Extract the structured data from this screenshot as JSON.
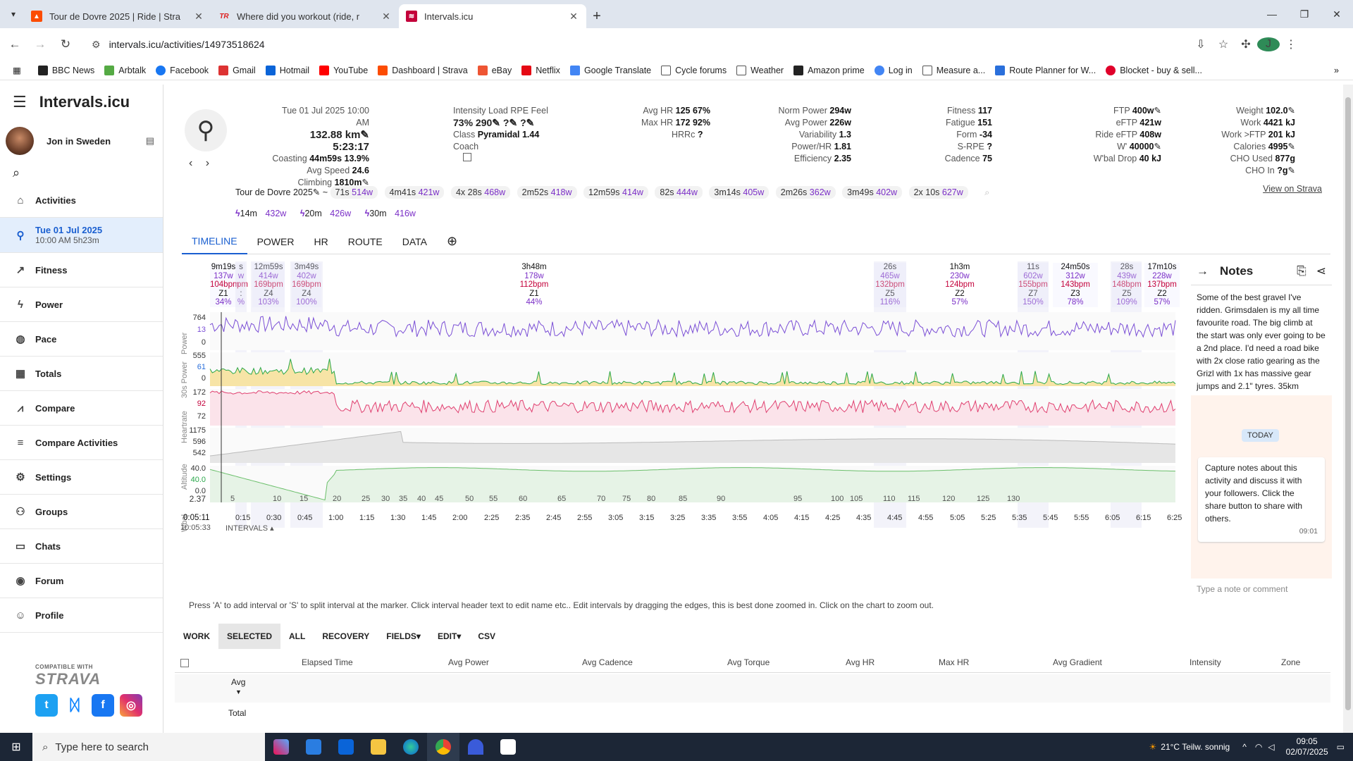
{
  "browser": {
    "tabs": [
      {
        "title": "Tour de Dovre 2025 | Ride | Stra",
        "icon": "strava-icon",
        "color": "#fc4c02"
      },
      {
        "title": "Where did you workout (ride, r",
        "icon": "trainerroad-icon",
        "color": "#d22"
      },
      {
        "title": "Intervals.icu",
        "icon": "intervals-icon",
        "color": "#c3003a"
      }
    ],
    "url": "intervals.icu/activities/14973518624",
    "profile_initial": "J"
  },
  "bookmarks": [
    {
      "label": "BBC News",
      "color": "#222"
    },
    {
      "label": "Arbtalk",
      "color": "#5a4"
    },
    {
      "label": "Facebook",
      "color": "#1877f2"
    },
    {
      "label": "Gmail",
      "color": "#d33"
    },
    {
      "label": "Hotmail",
      "color": "#0a64d8"
    },
    {
      "label": "YouTube",
      "color": "#f00"
    },
    {
      "label": "Dashboard | Strava",
      "color": "#fc4c02"
    },
    {
      "label": "eBay",
      "color": "#e53"
    },
    {
      "label": "Netflix",
      "color": "#e50914"
    },
    {
      "label": "Google Translate",
      "color": "#4285f4"
    },
    {
      "label": "Cycle forums",
      "color": "#888"
    },
    {
      "label": "Weather",
      "color": "#888"
    },
    {
      "label": "Amazon prime",
      "color": "#222"
    },
    {
      "label": "Log in",
      "color": "#4285f4"
    },
    {
      "label": "Measure a...",
      "color": "#888"
    },
    {
      "label": "Route Planner for W...",
      "color": "#2a6fdb"
    },
    {
      "label": "Blocket - buy & sell...",
      "color": "#e0002a"
    }
  ],
  "sidebar": {
    "brand": "Intervals.icu",
    "user": "Jon in Sweden",
    "items": [
      {
        "label": "Activities",
        "icon": "home-icon"
      },
      {
        "label": "Tue 01 Jul 2025",
        "sub": "10:00 AM   5h23m",
        "icon": "bike-icon",
        "selected": true
      },
      {
        "label": "Fitness",
        "icon": "trend-icon"
      },
      {
        "label": "Power",
        "icon": "bolt-icon"
      },
      {
        "label": "Pace",
        "icon": "shoe-icon"
      },
      {
        "label": "Totals",
        "icon": "calendar-icon"
      },
      {
        "label": "Compare",
        "icon": "chart-line-icon"
      },
      {
        "label": "Compare Activities",
        "icon": "compare-icon"
      },
      {
        "label": "Settings",
        "icon": "gear-icon"
      },
      {
        "label": "Groups",
        "icon": "group-icon"
      },
      {
        "label": "Chats",
        "icon": "chat-icon"
      },
      {
        "label": "Forum",
        "icon": "forum-icon"
      },
      {
        "label": "Profile",
        "icon": "profile-icon"
      }
    ],
    "compatible": "COMPATIBLE WITH",
    "strava": "STRAVA"
  },
  "summary": {
    "date": "Tue 01 Jul 2025",
    "time": "10:00 AM",
    "distance": "132.88 km",
    "duration": "5:23:17",
    "coasting_label": "Coasting",
    "coasting": "44m59s 13.9%",
    "avg_speed_label": "Avg Speed",
    "avg_speed": "24.6",
    "climbing_label": "Climbing",
    "climbing": "1810m",
    "intensity_label": "Intensity",
    "intensity": "73%",
    "load_label": "Load",
    "load": "290",
    "rpe_label": "RPE",
    "rpe": "?",
    "feel_label": "Feel",
    "feel": "?",
    "class_label": "Class",
    "class": "Pyramidal 1.44",
    "coach_label": "Coach",
    "avghr_label": "Avg HR",
    "avghr": "125 67%",
    "maxhr_label": "Max HR",
    "maxhr": "172 92%",
    "hrrc_label": "HRRc",
    "hrrc": "?",
    "np_label": "Norm Power",
    "np": "294w",
    "ap_label": "Avg Power",
    "ap": "226w",
    "var_label": "Variability",
    "var": "1.3",
    "phr_label": "Power/HR",
    "phr": "1.81",
    "eff_label": "Efficiency",
    "eff": "2.35",
    "fitness_label": "Fitness",
    "fitness": "117",
    "fatigue_label": "Fatigue",
    "fatigue": "151",
    "form_label": "Form",
    "form": "-34",
    "srpe_label": "S-RPE",
    "srpe": "?",
    "cad_label": "Cadence",
    "cad": "75",
    "ftp_label": "FTP",
    "ftp": "400w",
    "eftp_label": "eFTP",
    "eftp": "421w",
    "reftp_label": "Ride eFTP",
    "reftp": "408w",
    "w_label": "W'",
    "w": "40000",
    "wbal_label": "W'bal Drop",
    "wbal": "40 kJ",
    "weight_label": "Weight",
    "weight": "102.0",
    "work_label": "Work",
    "work": "4421 kJ",
    "workftp_label": "Work >FTP",
    "workftp": "201 kJ",
    "cal_label": "Calories",
    "cal": "4995",
    "cho_label": "CHO Used",
    "cho": "877g",
    "choin_label": "CHO In",
    "choin": "?g",
    "view_strava": "View on Strava"
  },
  "bests": {
    "name": "Tour de Dovre 2025",
    "items": [
      {
        "d": "71s",
        "w": "514w"
      },
      {
        "d": "4m41s",
        "w": "421w"
      },
      {
        "d": "4x 28s",
        "w": "468w"
      },
      {
        "d": "2m52s",
        "w": "418w"
      },
      {
        "d": "12m59s",
        "w": "414w"
      },
      {
        "d": "82s",
        "w": "444w"
      },
      {
        "d": "3m14s",
        "w": "405w"
      },
      {
        "d": "2m26s",
        "w": "362w"
      },
      {
        "d": "3m49s",
        "w": "402w"
      },
      {
        "d": "2x 10s",
        "w": "627w"
      }
    ],
    "peaks": [
      {
        "d": "14m",
        "w": "432w"
      },
      {
        "d": "20m",
        "w": "426w"
      },
      {
        "d": "30m",
        "w": "416w"
      }
    ]
  },
  "tabs": [
    "TIMELINE",
    "POWER",
    "HR",
    "ROUTE",
    "DATA"
  ],
  "intervals": [
    {
      "dur": "9m19s",
      "w": "137w",
      "hr": "104bpm",
      "z": "Z1",
      "pct": "34%"
    },
    {
      "dur": "s",
      "w": "w",
      "hr": "pm",
      "z": ":",
      "pct": "%"
    },
    {
      "dur": "12m59s",
      "w": "414w",
      "hr": "169bpm",
      "z": "Z4",
      "pct": "103%"
    },
    {
      "dur": "3m49s",
      "w": "402w",
      "hr": "169bpm",
      "z": "Z4",
      "pct": "100%"
    },
    {
      "dur": "3h48m",
      "w": "178w",
      "hr": "112bpm",
      "z": "Z1",
      "pct": "44%"
    },
    {
      "dur": "26s",
      "w": "465w",
      "hr": "132bpm",
      "z": "Z5",
      "pct": "116%"
    },
    {
      "dur": "1h3m",
      "w": "230w",
      "hr": "124bpm",
      "z": "Z2",
      "pct": "57%"
    },
    {
      "dur": "11s",
      "w": "602w",
      "hr": "155bpm",
      "z": "Z7",
      "pct": "150%"
    },
    {
      "dur": "24m50s",
      "w": "312w",
      "hr": "143bpm",
      "z": "Z3",
      "pct": "78%"
    },
    {
      "dur": "28s",
      "w": "439w",
      "hr": "148bpm",
      "z": "Z5",
      "pct": "109%"
    },
    {
      "dur": "17m10s",
      "w": "228w",
      "hr": "137bpm",
      "z": "Z2",
      "pct": "57%"
    }
  ],
  "chart": {
    "rows": [
      {
        "name": "Power",
        "ticks": [
          "764",
          "13",
          "0"
        ]
      },
      {
        "name": "30s Power",
        "ticks": [
          "555",
          "61",
          "0"
        ]
      },
      {
        "name": "Heartrate",
        "ticks": [
          "172",
          "92",
          "72"
        ]
      },
      {
        "name": "Altitude",
        "ticks": [
          "1175",
          "596",
          "542"
        ]
      },
      {
        "name": "Wbal",
        "ticks": [
          "40.0",
          "40.0",
          "0.0"
        ]
      }
    ],
    "cursor_val": "2.37",
    "km_ticks": [
      "5",
      "10",
      "15",
      "20",
      "25",
      "30",
      "35",
      "40",
      "45",
      "50",
      "55",
      "60",
      "65",
      "70",
      "75",
      "80",
      "85",
      "90",
      "95",
      "100",
      "105",
      "110",
      "115",
      "120",
      "125",
      "130"
    ],
    "time_ticks": [
      "0:15",
      "0:30",
      "0:45",
      "1:00",
      "1:15",
      "1:30",
      "1:45",
      "2:00",
      "2:25",
      "2:35",
      "2:45",
      "2:55",
      "3:05",
      "3:15",
      "3:25",
      "3:35",
      "3:55",
      "4:05",
      "4:15",
      "4:25",
      "4:35",
      "4:45",
      "4:55",
      "5:05",
      "5:25",
      "5:35",
      "5:45",
      "5:55",
      "6:05",
      "6:15",
      "6:25"
    ],
    "cursor_time": "0:05:11",
    "cursor_clock": "10:05:33",
    "intervals_label": "INTERVALS"
  },
  "notes": {
    "title": "Notes",
    "text": "Some of the best gravel I've ridden. Grimsdalen is my all time favourite road. The big climb at the start was only ever going to be a 2nd place. I'd need a road bike with 2x close ratio gearing as the Grizl with 1x has massive gear jumps and 2.1\" tyres. 35km",
    "today": "TODAY",
    "capture": "Capture notes about this activity and discuss it with your followers. Click the share button to share with others.",
    "capture_time": "09:01",
    "placeholder": "Type a note or comment"
  },
  "hint": "Press 'A' to add interval or 'S' to split interval at the marker. Click interval header text to edit name etc.. Edit intervals by dragging the edges, this is best done zoomed in. Click on the chart to zoom out.",
  "table": {
    "buttons": [
      "WORK",
      "SELECTED",
      "ALL",
      "RECOVERY",
      "FIELDS",
      "EDIT",
      "CSV"
    ],
    "headers": [
      "Elapsed Time",
      "Avg Power",
      "Avg Cadence",
      "Avg Torque",
      "Avg HR",
      "Max HR",
      "Avg Gradient",
      "Intensity",
      "Zone"
    ],
    "avg": "Avg",
    "total": "Total"
  },
  "taskbar": {
    "search": "Type here to search",
    "weather": "21°C  Teilw. sonnig",
    "time": "09:05",
    "date": "02/07/2025"
  }
}
